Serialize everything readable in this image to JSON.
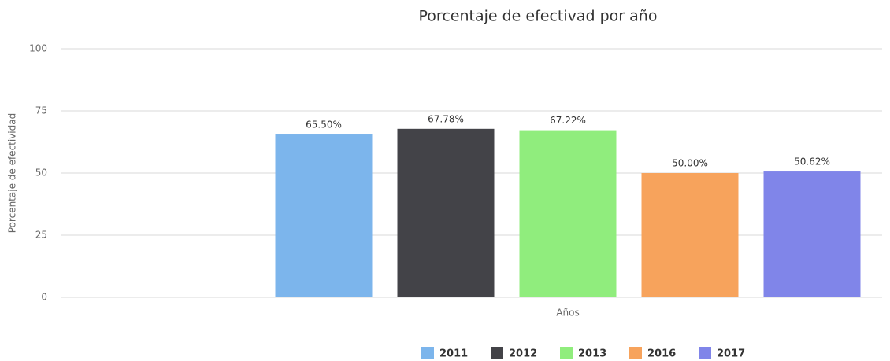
{
  "chart_data": {
    "type": "bar",
    "title": "Porcentaje de efectivad por año",
    "y_label": "Porcentaje de efectividad",
    "categories": [
      "Años"
    ],
    "series": [
      {
        "name": "2011",
        "color": "#7cb5ec",
        "values": [
          65.5
        ],
        "value_labels": [
          "65.50%"
        ]
      },
      {
        "name": "2012",
        "color": "#434348",
        "values": [
          67.78
        ],
        "value_labels": [
          "67.78%"
        ]
      },
      {
        "name": "2013",
        "color": "#90ed7d",
        "values": [
          67.22
        ],
        "value_labels": [
          "67.22%"
        ]
      },
      {
        "name": "2016",
        "color": "#f7a35c",
        "values": [
          50.0
        ],
        "value_labels": [
          "50.00%"
        ]
      },
      {
        "name": "2017",
        "color": "#8085e9",
        "values": [
          50.62
        ],
        "value_labels": [
          "50.62%"
        ]
      }
    ],
    "ylim": [
      0,
      100
    ],
    "yticks": [
      0,
      25,
      50,
      75,
      100
    ],
    "grid": true,
    "legend": "bottom"
  }
}
